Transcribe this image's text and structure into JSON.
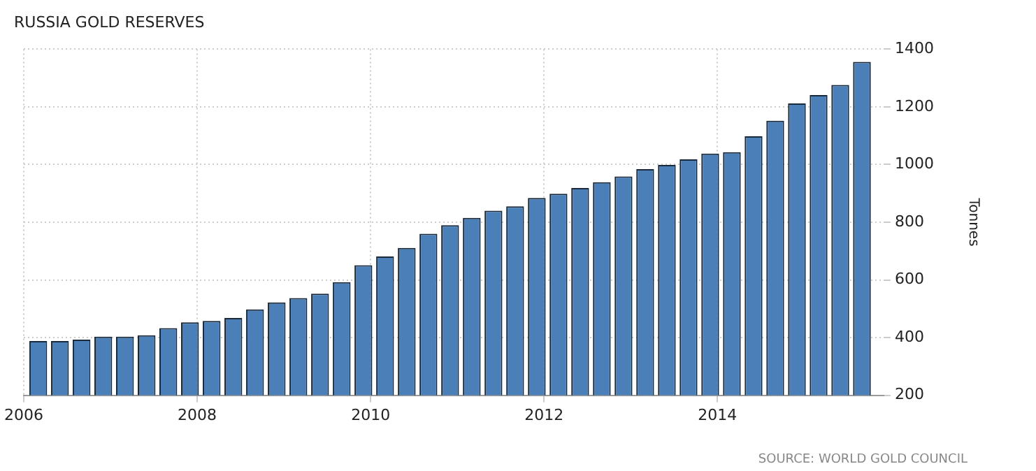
{
  "chart_data": {
    "type": "bar",
    "title": "RUSSIA GOLD RESERVES",
    "ylabel": "Tonnes",
    "color": "#4a7fb8",
    "x": [
      "2006-03",
      "2006-06",
      "2006-09",
      "2006-12",
      "2007-03",
      "2007-06",
      "2007-09",
      "2007-12",
      "2008-03",
      "2008-06",
      "2008-09",
      "2008-12",
      "2009-03",
      "2009-06",
      "2009-09",
      "2009-12",
      "2010-03",
      "2010-06",
      "2010-09",
      "2010-12",
      "2011-03",
      "2011-06",
      "2011-09",
      "2011-12",
      "2012-03",
      "2012-06",
      "2012-09",
      "2012-12",
      "2013-03",
      "2013-06",
      "2013-09",
      "2013-12",
      "2014-03",
      "2014-06",
      "2014-09",
      "2014-12",
      "2015-03",
      "2015-06",
      "2015-09"
    ],
    "values": [
      388,
      388,
      393,
      403,
      403,
      408,
      433,
      453,
      458,
      468,
      498,
      522,
      537,
      552,
      592,
      651,
      681,
      711,
      760,
      790,
      815,
      840,
      855,
      884,
      899,
      919,
      939,
      959,
      984,
      999,
      1018,
      1038,
      1043,
      1098,
      1152,
      1212,
      1241,
      1276,
      1356
    ],
    "xlim": [
      "2006",
      "2015-12"
    ],
    "xticks": [
      "2006",
      "2008",
      "2010",
      "2012",
      "2014"
    ],
    "ylim": [
      200,
      1400
    ],
    "yticks": [
      200,
      400,
      600,
      800,
      1000,
      1200,
      1400
    ],
    "grid": true,
    "legend": false,
    "annotations": [
      "SOURCE: WORLD GOLD COUNCIL"
    ]
  }
}
